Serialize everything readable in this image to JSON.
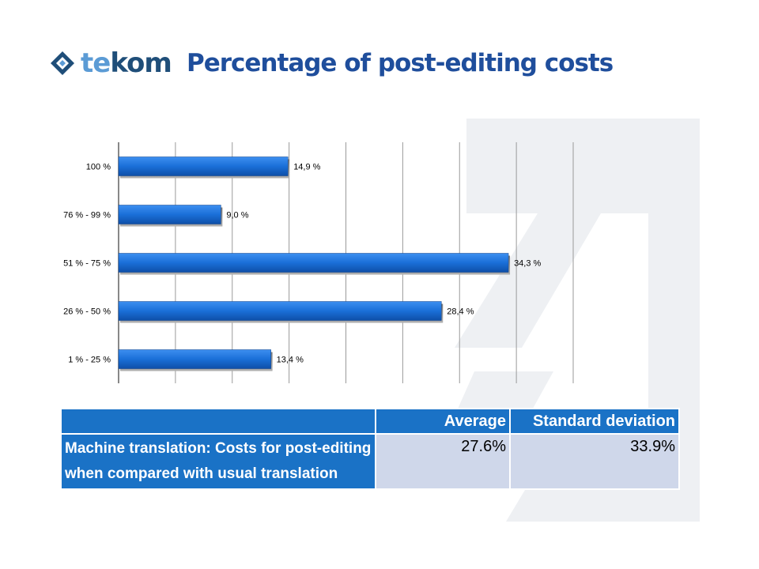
{
  "header": {
    "logo_text_part1": "te",
    "logo_text_part2": "kom",
    "title": "Percentage of post-editing costs"
  },
  "colors": {
    "bar": "#1a6fd8",
    "table_header": "#1a72c6",
    "table_cell": "#cfd7ea",
    "title": "#1f4e9c"
  },
  "chart_data": {
    "type": "bar",
    "orientation": "horizontal",
    "categories": [
      "100 %",
      "76 % - 99 %",
      "51 % - 75 %",
      "26 % - 50 %",
      "1 % - 25 %"
    ],
    "values": [
      14.9,
      9.0,
      34.3,
      28.4,
      13.4
    ],
    "data_labels": [
      "14,9 %",
      "9,0 %",
      "34,3 %",
      "28,4 %",
      "13,4 %"
    ],
    "xlim": [
      0,
      40
    ],
    "grid": true,
    "gridline_step": 5,
    "x_tick_labels_shown": false,
    "title": "",
    "xlabel": "",
    "ylabel": ""
  },
  "table": {
    "headers": [
      "",
      "Average",
      "Standard deviation"
    ],
    "rows": [
      {
        "label": "Machine translation: Costs for post-editing when compared with usual translation",
        "average": "27.6%",
        "std_dev": "33.9%"
      }
    ]
  }
}
